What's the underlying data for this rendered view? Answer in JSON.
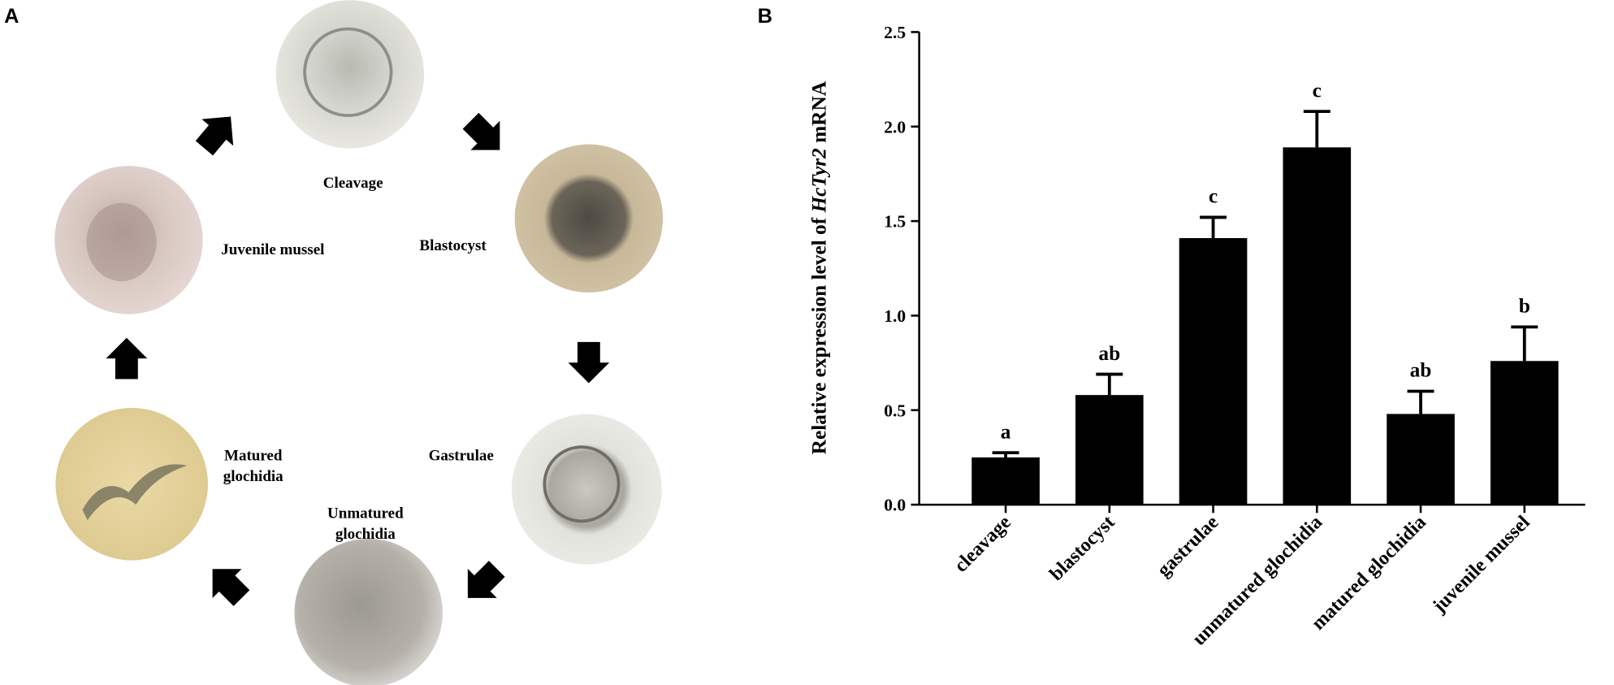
{
  "panel_a": {
    "label": "A",
    "stages": [
      {
        "lines": [
          "Cleavage"
        ]
      },
      {
        "lines": [
          "Blastocyst"
        ]
      },
      {
        "lines": [
          "Gastrulae"
        ]
      },
      {
        "lines": [
          "Unmatured",
          "glochidia"
        ]
      },
      {
        "lines": [
          "Matured",
          "glochidia"
        ]
      },
      {
        "lines": [
          "Juvenile mussel"
        ]
      }
    ]
  },
  "chart_data": {
    "type": "bar",
    "panel_label": "B",
    "ylabel": [
      "Relative expression level of ",
      "HcTyr2",
      " mRNA"
    ],
    "categories": [
      "cleavage",
      "blastocyst",
      "gastrulae",
      "unmatured glochidia",
      "matured glochidia",
      "juvenile mussel"
    ],
    "values": [
      0.25,
      0.58,
      1.41,
      1.89,
      0.48,
      0.76
    ],
    "errors": [
      0.025,
      0.11,
      0.11,
      0.19,
      0.12,
      0.18
    ],
    "annotations": [
      "a",
      "ab",
      "c",
      "c",
      "ab",
      "b"
    ],
    "color": "#000000",
    "ylim": [
      0,
      2.5
    ],
    "yticks": [
      {
        "value": 0,
        "label": "0.0"
      },
      {
        "value": 0.5,
        "label": "0.5"
      },
      {
        "value": 1,
        "label": "1.0"
      },
      {
        "value": 1.5,
        "label": "1.5"
      },
      {
        "value": 2,
        "label": "2.0"
      },
      {
        "value": 2.5,
        "label": "2.5"
      }
    ]
  }
}
